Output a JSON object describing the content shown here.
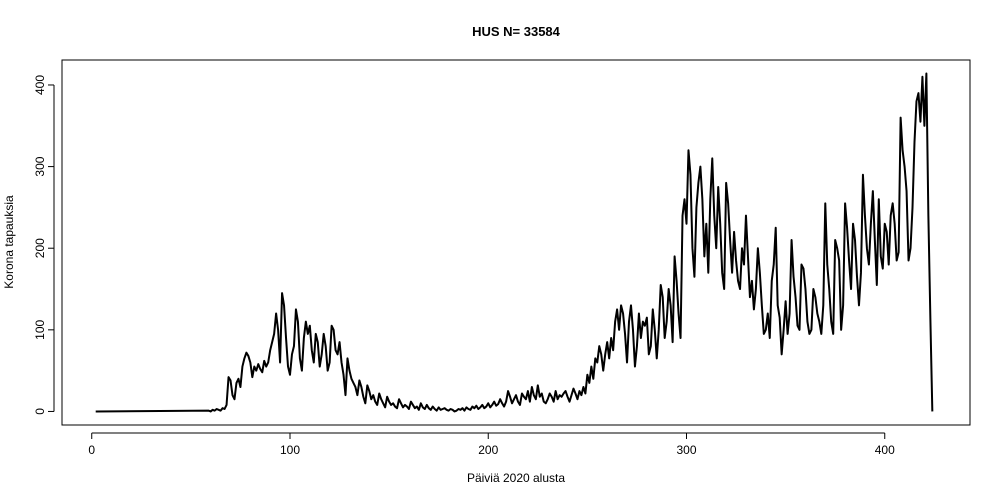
{
  "chart_data": {
    "type": "line",
    "title": "HUS N= 33584",
    "xlabel": "Päiviä 2020 alusta",
    "ylabel": "Korona tapauksia",
    "xlim": [
      -15,
      443
    ],
    "ylim": [
      -16.6,
      430.6
    ],
    "xticks": [
      0,
      100,
      200,
      300,
      400
    ],
    "yticks": [
      0,
      100,
      200,
      300,
      400
    ],
    "grid": false,
    "x": [
      2,
      59,
      60,
      61,
      62,
      63,
      64,
      65,
      66,
      67,
      68,
      69,
      70,
      71,
      72,
      73,
      74,
      75,
      76,
      77,
      78,
      79,
      80,
      81,
      82,
      83,
      84,
      85,
      86,
      87,
      88,
      89,
      90,
      91,
      92,
      93,
      94,
      95,
      96,
      97,
      98,
      99,
      100,
      101,
      102,
      103,
      104,
      105,
      106,
      107,
      108,
      109,
      110,
      111,
      112,
      113,
      114,
      115,
      116,
      117,
      118,
      119,
      120,
      121,
      122,
      123,
      124,
      125,
      126,
      127,
      128,
      129,
      130,
      131,
      132,
      133,
      134,
      135,
      136,
      137,
      138,
      139,
      140,
      141,
      142,
      143,
      144,
      145,
      146,
      147,
      148,
      149,
      150,
      151,
      152,
      153,
      154,
      155,
      156,
      157,
      158,
      159,
      160,
      161,
      162,
      163,
      164,
      165,
      166,
      167,
      168,
      169,
      170,
      171,
      172,
      173,
      174,
      175,
      176,
      177,
      178,
      179,
      180,
      181,
      182,
      183,
      184,
      185,
      186,
      187,
      188,
      189,
      190,
      191,
      192,
      193,
      194,
      195,
      196,
      197,
      198,
      199,
      200,
      201,
      202,
      203,
      204,
      205,
      206,
      207,
      208,
      209,
      210,
      211,
      212,
      213,
      214,
      215,
      216,
      217,
      218,
      219,
      220,
      221,
      222,
      223,
      224,
      225,
      226,
      227,
      228,
      229,
      230,
      231,
      232,
      233,
      234,
      235,
      236,
      237,
      238,
      239,
      240,
      241,
      242,
      243,
      244,
      245,
      246,
      247,
      248,
      249,
      250,
      251,
      252,
      253,
      254,
      255,
      256,
      257,
      258,
      259,
      260,
      261,
      262,
      263,
      264,
      265,
      266,
      267,
      268,
      269,
      270,
      271,
      272,
      273,
      274,
      275,
      276,
      277,
      278,
      279,
      280,
      281,
      282,
      283,
      284,
      285,
      286,
      287,
      288,
      289,
      290,
      291,
      292,
      293,
      294,
      295,
      296,
      297,
      298,
      299,
      300,
      301,
      302,
      303,
      304,
      305,
      306,
      307,
      308,
      309,
      310,
      311,
      312,
      313,
      314,
      315,
      316,
      317,
      318,
      319,
      320,
      321,
      322,
      323,
      324,
      325,
      326,
      327,
      328,
      329,
      330,
      331,
      332,
      333,
      334,
      335,
      336,
      337,
      338,
      339,
      340,
      341,
      342,
      343,
      344,
      345,
      346,
      347,
      348,
      349,
      350,
      351,
      352,
      353,
      354,
      355,
      356,
      357,
      358,
      359,
      360,
      361,
      362,
      363,
      364,
      365,
      366,
      367,
      368,
      369,
      370,
      371,
      372,
      373,
      374,
      375,
      376,
      377,
      378,
      379,
      380,
      381,
      382,
      383,
      384,
      385,
      386,
      387,
      388,
      389,
      390,
      391,
      392,
      393,
      394,
      395,
      396,
      397,
      398,
      399,
      400,
      401,
      402,
      403,
      404,
      405,
      406,
      407,
      408,
      409,
      410,
      411,
      412,
      413,
      414,
      415,
      416,
      417,
      418,
      419,
      420,
      421,
      422,
      423,
      424
    ],
    "series": [
      {
        "color": "#000000",
        "values": [
          0,
          1,
          0,
          2,
          1,
          3,
          2,
          1,
          4,
          3,
          8,
          42,
          38,
          20,
          15,
          35,
          40,
          30,
          55,
          65,
          72,
          68,
          60,
          42,
          55,
          50,
          58,
          52,
          48,
          62,
          55,
          60,
          75,
          85,
          95,
          120,
          100,
          60,
          145,
          130,
          90,
          55,
          45,
          70,
          80,
          125,
          110,
          65,
          50,
          90,
          110,
          95,
          105,
          75,
          60,
          95,
          85,
          55,
          70,
          95,
          80,
          50,
          60,
          105,
          100,
          75,
          70,
          85,
          60,
          45,
          20,
          65,
          50,
          40,
          35,
          30,
          20,
          38,
          30,
          18,
          10,
          32,
          25,
          15,
          20,
          12,
          8,
          22,
          15,
          10,
          5,
          18,
          12,
          8,
          10,
          6,
          4,
          15,
          10,
          5,
          8,
          6,
          3,
          12,
          8,
          4,
          6,
          2,
          10,
          5,
          3,
          8,
          4,
          2,
          6,
          3,
          1,
          5,
          2,
          3,
          4,
          2,
          1,
          3,
          2,
          0,
          1,
          3,
          2,
          4,
          1,
          5,
          3,
          2,
          6,
          4,
          7,
          3,
          5,
          8,
          4,
          6,
          10,
          5,
          8,
          12,
          7,
          9,
          15,
          10,
          6,
          12,
          25,
          18,
          10,
          15,
          20,
          12,
          8,
          22,
          18,
          15,
          25,
          12,
          30,
          20,
          15,
          32,
          18,
          22,
          12,
          10,
          15,
          22,
          18,
          12,
          25,
          15,
          20,
          18,
          22,
          25,
          18,
          12,
          20,
          28,
          22,
          15,
          25,
          20,
          30,
          22,
          45,
          35,
          55,
          40,
          65,
          60,
          80,
          70,
          50,
          70,
          85,
          65,
          90,
          75,
          110,
          125,
          100,
          130,
          120,
          95,
          60,
          110,
          130,
          100,
          55,
          80,
          120,
          90,
          110,
          105,
          115,
          70,
          80,
          125,
          100,
          65,
          100,
          155,
          140,
          90,
          110,
          150,
          130,
          85,
          190,
          160,
          120,
          90,
          240,
          260,
          230,
          320,
          290,
          200,
          165,
          250,
          280,
          300,
          260,
          190,
          230,
          170,
          260,
          310,
          240,
          200,
          275,
          230,
          170,
          150,
          280,
          255,
          210,
          170,
          220,
          185,
          160,
          150,
          200,
          180,
          240,
          190,
          140,
          160,
          125,
          150,
          200,
          170,
          130,
          95,
          100,
          120,
          90,
          160,
          180,
          225,
          130,
          115,
          70,
          100,
          135,
          95,
          120,
          210,
          165,
          140,
          105,
          100,
          180,
          175,
          150,
          110,
          95,
          100,
          150,
          140,
          120,
          110,
          95,
          130,
          255,
          180,
          150,
          110,
          95,
          210,
          200,
          185,
          100,
          130,
          255,
          225,
          185,
          150,
          230,
          210,
          165,
          130,
          170,
          290,
          240,
          200,
          180,
          230,
          270,
          210,
          155,
          260,
          190,
          175,
          230,
          220,
          180,
          240,
          255,
          230,
          185,
          195,
          360,
          320,
          300,
          270,
          185,
          200,
          250,
          330,
          380,
          390,
          355,
          410,
          350,
          414,
          240,
          115,
          0
        ]
      }
    ]
  }
}
